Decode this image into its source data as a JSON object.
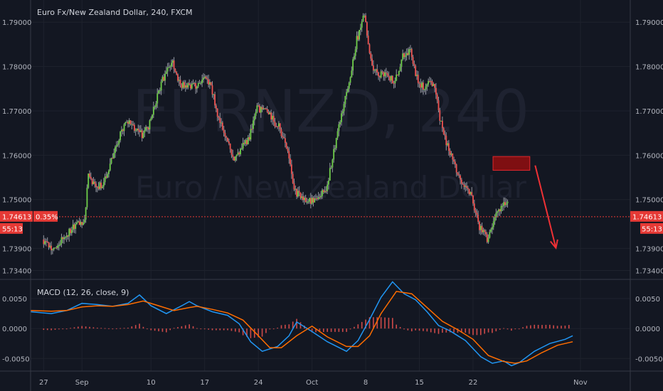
{
  "chart_data": [
    {
      "type": "candlestick",
      "title": "Euro Fx/New Zealand Dollar, 240, FXCM",
      "watermark_symbol": "EURNZD, 240",
      "watermark_name": "Euro / New Zealand Dollar",
      "ylim": [
        1.732,
        1.795
      ],
      "y_ticks": [
        "1.79000",
        "1.78000",
        "1.77000",
        "1.76000",
        "1.75000",
        "1.73900",
        "1.73400"
      ],
      "y_tick_values": [
        1.79,
        1.78,
        1.77,
        1.76,
        1.75,
        1.739,
        1.734
      ],
      "x_ticks": [
        "27",
        "Sep",
        "10",
        "17",
        "24",
        "Oct",
        "8",
        "15",
        "22",
        "Nov"
      ],
      "x_tick_days": [
        0,
        5,
        14,
        21,
        28,
        35,
        42,
        49,
        56,
        70
      ],
      "xlim_days": [
        -1.7,
        76.5
      ],
      "data_end_day": 60.5,
      "price_levels": [
        [
          0,
          1.741
        ],
        [
          1.5,
          1.7385
        ],
        [
          3,
          1.742
        ],
        [
          4.5,
          1.7445
        ],
        [
          5.5,
          1.7455
        ],
        [
          6,
          1.755
        ],
        [
          7,
          1.753
        ],
        [
          8,
          1.7535
        ],
        [
          9,
          1.7585
        ],
        [
          10,
          1.764
        ],
        [
          11,
          1.768
        ],
        [
          12,
          1.766
        ],
        [
          13,
          1.7645
        ],
        [
          14,
          1.767
        ],
        [
          15,
          1.7735
        ],
        [
          16,
          1.7785
        ],
        [
          17,
          1.7805
        ],
        [
          18,
          1.776
        ],
        [
          19,
          1.7755
        ],
        [
          20,
          1.7755
        ],
        [
          21,
          1.7775
        ],
        [
          22,
          1.7755
        ],
        [
          23,
          1.768
        ],
        [
          24,
          1.7635
        ],
        [
          25,
          1.7585
        ],
        [
          26,
          1.7615
        ],
        [
          27,
          1.764
        ],
        [
          28,
          1.7705
        ],
        [
          29,
          1.7705
        ],
        [
          30,
          1.768
        ],
        [
          31,
          1.766
        ],
        [
          32,
          1.7605
        ],
        [
          33,
          1.7515
        ],
        [
          34,
          1.7505
        ],
        [
          35,
          1.7495
        ],
        [
          36,
          1.751
        ],
        [
          37,
          1.7525
        ],
        [
          38,
          1.7605
        ],
        [
          39,
          1.769
        ],
        [
          40,
          1.7765
        ],
        [
          41,
          1.786
        ],
        [
          42,
          1.7915
        ],
        [
          43,
          1.7795
        ],
        [
          44,
          1.778
        ],
        [
          45,
          1.778
        ],
        [
          46,
          1.7765
        ],
        [
          47,
          1.7825
        ],
        [
          48,
          1.7835
        ],
        [
          49,
          1.776
        ],
        [
          50,
          1.7755
        ],
        [
          51,
          1.7765
        ],
        [
          52,
          1.767
        ],
        [
          53,
          1.761
        ],
        [
          54,
          1.757
        ],
        [
          55,
          1.753
        ],
        [
          56,
          1.7505
        ],
        [
          57,
          1.744
        ],
        [
          58,
          1.741
        ],
        [
          59,
          1.7465
        ],
        [
          60,
          1.749
        ],
        [
          61,
          1.7485
        ],
        [
          62,
          1.7455
        ],
        [
          63,
          1.7415
        ],
        [
          64,
          1.7455
        ],
        [
          65,
          1.749
        ],
        [
          66,
          1.7475
        ]
      ],
      "last_price": "1.74613",
      "last_price_value": 1.74613,
      "change_pct": "0.35%",
      "countdown": "55:13",
      "annotation_box_days": [
        58.6,
        63.4
      ],
      "annotation_box_values": [
        1.7597,
        1.7566
      ],
      "annotation_arrow_days": [
        64.1,
        66.8
      ],
      "annotation_arrow_values": [
        1.7577,
        1.7391
      ],
      "colors": {
        "background": "#131722",
        "up": "#6fcf4a",
        "down": "#ef5350",
        "wick": "#9598a1",
        "grid": "#1e222d",
        "price_line": "#e53935",
        "price_tag": "#e53935",
        "annotation_fill": "#7f0f12",
        "annotation_border": "#e0282e",
        "annotation_arrow": "#ef3135"
      }
    },
    {
      "type": "line",
      "title": "MACD (12, 26, close, 9)",
      "ylim": [
        -0.0071,
        0.0082
      ],
      "y_ticks": [
        "0.0050",
        "0.0000",
        "-0.0050"
      ],
      "y_tick_values": [
        0.005,
        0.0,
        -0.005
      ],
      "series": [
        {
          "key": "macd",
          "color": "#2196f3",
          "points": [
            [
              -1.7,
              0.0028
            ],
            [
              1,
              0.0025
            ],
            [
              3,
              0.003
            ],
            [
              5,
              0.0042
            ],
            [
              7,
              0.004
            ],
            [
              9,
              0.0037
            ],
            [
              11,
              0.0042
            ],
            [
              12.5,
              0.0056
            ],
            [
              14,
              0.0038
            ],
            [
              16,
              0.0025
            ],
            [
              18,
              0.0038
            ],
            [
              19,
              0.0045
            ],
            [
              20,
              0.0038
            ],
            [
              22,
              0.0028
            ],
            [
              24,
              0.0022
            ],
            [
              25.5,
              0.0008
            ],
            [
              27,
              -0.0022
            ],
            [
              28.5,
              -0.0038
            ],
            [
              30.5,
              -0.003
            ],
            [
              32,
              -0.0012
            ],
            [
              33,
              0.0011
            ],
            [
              35,
              -0.0005
            ],
            [
              37,
              -0.0022
            ],
            [
              39.5,
              -0.0038
            ],
            [
              41,
              -0.002
            ],
            [
              42.5,
              0.0015
            ],
            [
              44,
              0.0052
            ],
            [
              45.5,
              0.0078
            ],
            [
              47,
              0.0058
            ],
            [
              48.5,
              0.0048
            ],
            [
              50,
              0.0028
            ],
            [
              51.5,
              0.0005
            ],
            [
              53,
              -0.0004
            ],
            [
              55,
              -0.002
            ],
            [
              57,
              -0.0047
            ],
            [
              58.5,
              -0.0058
            ],
            [
              60,
              -0.0054
            ],
            [
              61,
              -0.0062
            ],
            [
              62,
              -0.0057
            ],
            [
              64,
              -0.0038
            ],
            [
              66,
              -0.0025
            ],
            [
              68,
              -0.0018
            ],
            [
              69,
              -0.0012
            ]
          ]
        },
        {
          "key": "signal",
          "color": "#ff6d00",
          "points": [
            [
              -1.7,
              0.003
            ],
            [
              1,
              0.0029
            ],
            [
              3,
              0.003
            ],
            [
              5,
              0.0036
            ],
            [
              7,
              0.0038
            ],
            [
              9,
              0.0037
            ],
            [
              11,
              0.004
            ],
            [
              13,
              0.0046
            ],
            [
              15,
              0.0038
            ],
            [
              17,
              0.003
            ],
            [
              19,
              0.0035
            ],
            [
              20,
              0.0037
            ],
            [
              22,
              0.0032
            ],
            [
              24,
              0.0026
            ],
            [
              26,
              0.0014
            ],
            [
              28,
              -0.0012
            ],
            [
              29.5,
              -0.0032
            ],
            [
              31,
              -0.0032
            ],
            [
              33,
              -0.0012
            ],
            [
              35,
              0.0004
            ],
            [
              37,
              -0.0014
            ],
            [
              39.5,
              -0.003
            ],
            [
              41,
              -0.003
            ],
            [
              42.5,
              -0.0012
            ],
            [
              44,
              0.0025
            ],
            [
              46,
              0.0062
            ],
            [
              48,
              0.0058
            ],
            [
              50,
              0.0035
            ],
            [
              52,
              0.0012
            ],
            [
              54,
              -0.0002
            ],
            [
              56,
              -0.0018
            ],
            [
              58,
              -0.0045
            ],
            [
              60,
              -0.0055
            ],
            [
              61.5,
              -0.0058
            ],
            [
              63,
              -0.0054
            ],
            [
              65,
              -0.004
            ],
            [
              67,
              -0.0028
            ],
            [
              69,
              -0.0022
            ]
          ]
        }
      ],
      "histogram_color": "#ef5350"
    }
  ]
}
